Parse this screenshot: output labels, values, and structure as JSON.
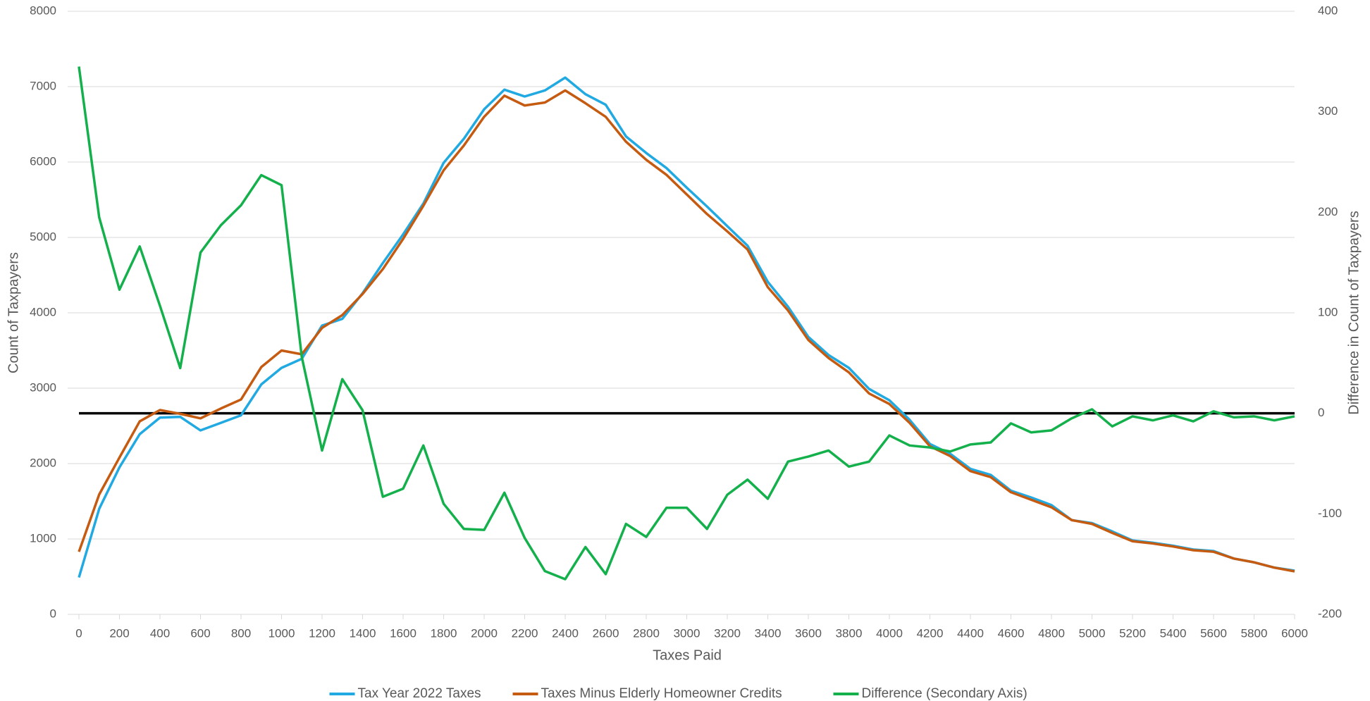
{
  "chart_data": {
    "type": "line",
    "x_label": "Taxes Paid",
    "y_label": "Count of Taxpayers",
    "y2_label": "Difference in Count of Taxpayers",
    "x": [
      0,
      100,
      200,
      300,
      400,
      500,
      600,
      700,
      800,
      900,
      1000,
      1100,
      1200,
      1300,
      1400,
      1500,
      1600,
      1700,
      1800,
      1900,
      2000,
      2100,
      2200,
      2300,
      2400,
      2500,
      2600,
      2700,
      2800,
      2900,
      3000,
      3100,
      3200,
      3300,
      3400,
      3500,
      3600,
      3700,
      3800,
      3900,
      4000,
      4100,
      4200,
      4300,
      4400,
      4500,
      4600,
      4700,
      4800,
      4900,
      5000,
      5100,
      5200,
      5300,
      5400,
      5500,
      5600,
      5700,
      5800,
      5900,
      6000
    ],
    "xlim": [
      0,
      6000
    ],
    "xticks": [
      0,
      200,
      400,
      600,
      800,
      1000,
      1200,
      1400,
      1600,
      1800,
      2000,
      2200,
      2400,
      2600,
      2800,
      3000,
      3200,
      3400,
      3600,
      3800,
      4000,
      4200,
      4400,
      4600,
      4800,
      5000,
      5200,
      5400,
      5600,
      5800,
      6000
    ],
    "ylim": [
      0,
      8000
    ],
    "yticks": [
      0,
      1000,
      2000,
      3000,
      4000,
      5000,
      6000,
      7000,
      8000
    ],
    "y2lim": [
      -200,
      400
    ],
    "y2ticks": [
      -200,
      -100,
      0,
      100,
      200,
      300,
      400
    ],
    "grid": true,
    "legend": "bottom",
    "series": [
      {
        "name": "Tax Year 2022 Taxes",
        "color": "#21a9e1",
        "values": [
          490,
          1400,
          1950,
          2390,
          2610,
          2620,
          2440,
          2540,
          2640,
          3050,
          3270,
          3390,
          3830,
          3920,
          4260,
          4660,
          5040,
          5450,
          5990,
          6310,
          6700,
          6960,
          6870,
          6950,
          7120,
          6900,
          6760,
          6340,
          6120,
          5920,
          5660,
          5410,
          5150,
          4890,
          4410,
          4080,
          3680,
          3440,
          3270,
          2990,
          2840,
          2580,
          2260,
          2130,
          1930,
          1850,
          1640,
          1550,
          1450,
          1250,
          1210,
          1100,
          980,
          950,
          910,
          860,
          840,
          740,
          690,
          620,
          580
        ]
      },
      {
        "name": "Taxes Minus Elderly Homeowner Credits",
        "color": "#c55a11",
        "values": [
          830,
          1590,
          2080,
          2560,
          2710,
          2660,
          2600,
          2730,
          2850,
          3280,
          3500,
          3450,
          3800,
          3970,
          4250,
          4580,
          4980,
          5420,
          5890,
          6220,
          6600,
          6880,
          6750,
          6790,
          6950,
          6780,
          6600,
          6270,
          6030,
          5830,
          5570,
          5310,
          5080,
          4840,
          4340,
          4030,
          3640,
          3400,
          3210,
          2930,
          2790,
          2540,
          2230,
          2100,
          1900,
          1820,
          1620,
          1520,
          1420,
          1250,
          1200,
          1080,
          970,
          940,
          900,
          850,
          830,
          740,
          690,
          620,
          570
        ]
      },
      {
        "name": "Difference (Secondary Axis)",
        "color": "#14b04c",
        "axis": "y2",
        "values": [
          345,
          195,
          123,
          166,
          107,
          45,
          160,
          187,
          207,
          237,
          227,
          56,
          -37,
          34,
          3,
          -83,
          -75,
          -32,
          -90,
          -115,
          -116,
          -79,
          -124,
          -157,
          -165,
          -133,
          -160,
          -110,
          -123,
          -94,
          -94,
          -115,
          -81,
          -66,
          -85,
          -48,
          -43,
          -37,
          -53,
          -48,
          -22,
          -32,
          -34,
          -38,
          -31,
          -29,
          -10,
          -19,
          -17,
          -5,
          4,
          -13,
          -3,
          -7,
          -2,
          -8,
          2,
          -4,
          -3,
          -7,
          -3
        ]
      }
    ]
  }
}
